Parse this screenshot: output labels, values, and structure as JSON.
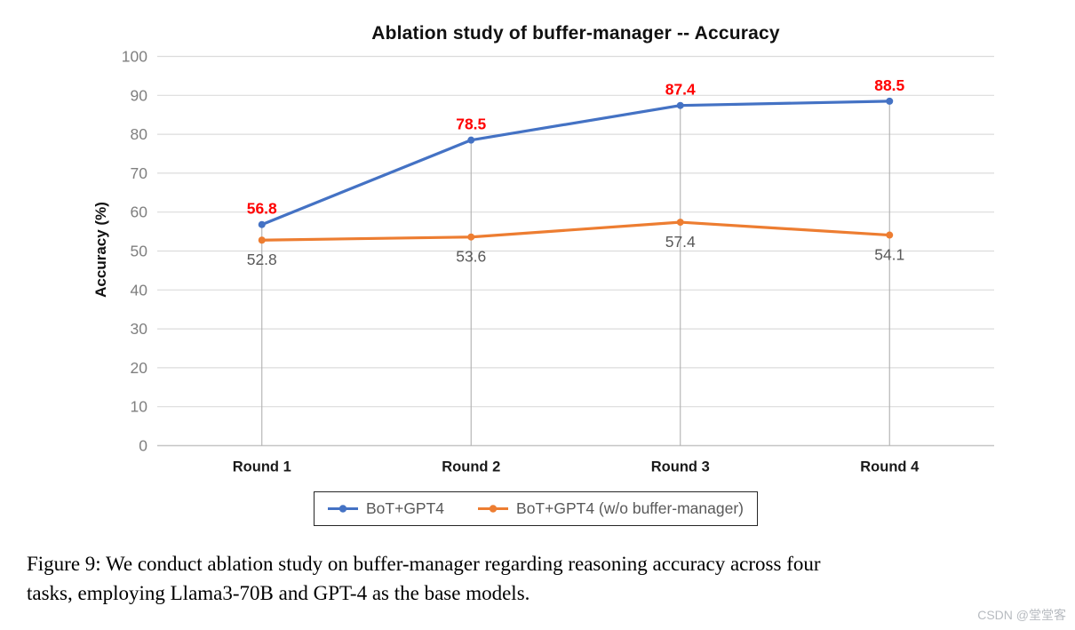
{
  "chart_data": {
    "type": "line",
    "title": "Ablation study of buffer-manager -- Accuracy",
    "xlabel": "",
    "ylabel": "Accuracy (%)",
    "categories": [
      "Round 1",
      "Round 2",
      "Round 3",
      "Round 4"
    ],
    "series": [
      {
        "name": "BoT+GPT4",
        "color": "#4472C4",
        "values": [
          56.8,
          78.5,
          87.4,
          88.5
        ],
        "label_color": "#FF0000",
        "label_bold": true,
        "label_position": "above"
      },
      {
        "name": "BoT+GPT4 (w/o buffer-manager)",
        "color": "#ED7D31",
        "values": [
          52.8,
          53.6,
          57.4,
          54.1
        ],
        "label_color": "#595959",
        "label_bold": false,
        "label_position": "below"
      }
    ],
    "ylim": [
      0,
      100
    ],
    "ytick_step": 10,
    "grid": "horizontal",
    "drop_lines": true,
    "legend_position": "bottom"
  },
  "colors": {
    "gridline": "#dcdcdc",
    "axis_line": "#c6c6c6",
    "drop_line": "#b0b0b0",
    "ytick_text": "#7f7f7f",
    "xtick_text": "#1a1a1a",
    "legend_border": "#262626",
    "legend_text": "#595959"
  },
  "caption": {
    "line1": "Figure 9: We conduct ablation study on buffer-manager regarding reasoning accuracy across four",
    "line2": "tasks, employing Llama3-70B and GPT-4 as the base models."
  },
  "watermark": "CSDN @堂堂客"
}
